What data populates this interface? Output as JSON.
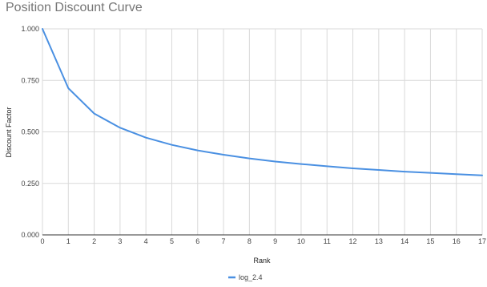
{
  "chart_data": {
    "type": "line",
    "title": "Position Discount Curve",
    "xlabel": "Rank",
    "ylabel": "Discount Factor",
    "xlim": [
      0,
      17
    ],
    "ylim": [
      0,
      1
    ],
    "x_ticks": [
      0,
      1,
      2,
      3,
      4,
      5,
      6,
      7,
      8,
      9,
      10,
      11,
      12,
      13,
      14,
      15,
      16,
      17
    ],
    "y_ticks": [
      "0.000",
      "0.250",
      "0.500",
      "0.750",
      "1.000"
    ],
    "grid": true,
    "legend_position": "bottom",
    "series": [
      {
        "name": "log_2.4",
        "color": "#4a90e2",
        "x": [
          0,
          1,
          2,
          3,
          4,
          5,
          6,
          7,
          8,
          9,
          10,
          11,
          12,
          13,
          14,
          15,
          16,
          17
        ],
        "values": [
          1.0,
          0.712,
          0.589,
          0.52,
          0.472,
          0.437,
          0.41,
          0.389,
          0.371,
          0.356,
          0.344,
          0.333,
          0.323,
          0.315,
          0.307,
          0.301,
          0.295,
          0.289
        ]
      }
    ]
  }
}
